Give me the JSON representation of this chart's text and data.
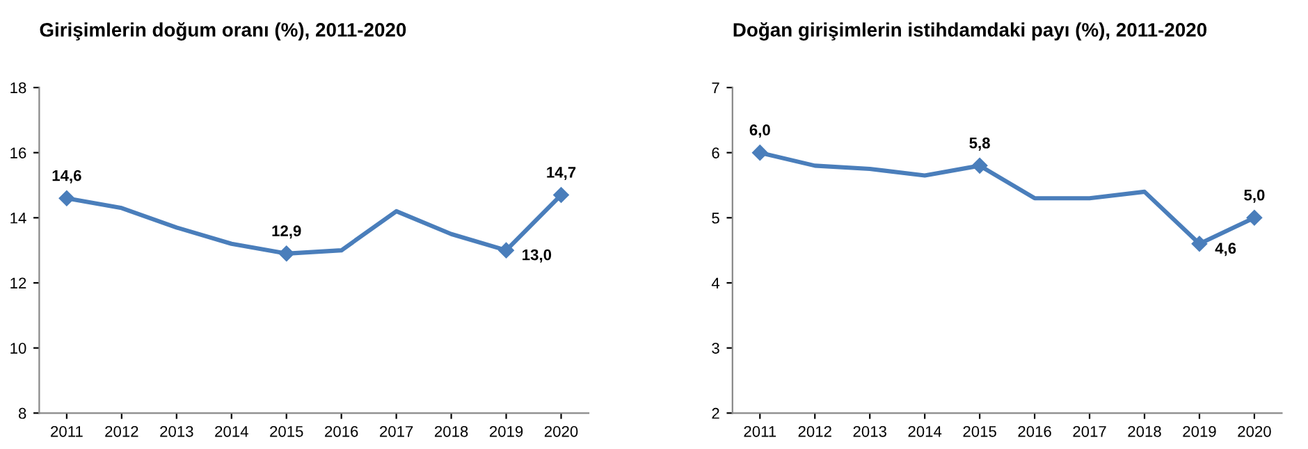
{
  "chart_data": [
    {
      "type": "line",
      "title": "Girişimlerin doğum oranı (%), 2011-2020",
      "categories": [
        "2011",
        "2012",
        "2013",
        "2014",
        "2015",
        "2016",
        "2017",
        "2018",
        "2019",
        "2020"
      ],
      "series": [
        {
          "color": "#4a7ebb",
          "values": [
            14.6,
            14.3,
            13.7,
            13.2,
            12.9,
            13.0,
            14.2,
            13.5,
            13.0,
            14.7
          ],
          "value_labels": [
            "14,6",
            null,
            null,
            null,
            "12,9",
            null,
            null,
            null,
            "13,0",
            "14,7"
          ]
        }
      ],
      "ylim": [
        8,
        18
      ],
      "yticks": [
        8,
        10,
        12,
        14,
        16,
        18
      ],
      "grid": false,
      "legend": false
    },
    {
      "type": "line",
      "title": "Doğan girişimlerin istihdamdaki payı (%), 2011-2020",
      "categories": [
        "2011",
        "2012",
        "2013",
        "2014",
        "2015",
        "2016",
        "2017",
        "2018",
        "2019",
        "2020"
      ],
      "series": [
        {
          "color": "#4a7ebb",
          "values": [
            6.0,
            5.8,
            5.75,
            5.65,
            5.8,
            5.3,
            5.3,
            5.4,
            4.6,
            5.0
          ],
          "value_labels": [
            "6,0",
            null,
            null,
            null,
            "5,8",
            null,
            null,
            null,
            "4,6",
            "5,0"
          ]
        }
      ],
      "ylim": [
        2,
        7
      ],
      "yticks": [
        2,
        3,
        4,
        5,
        6,
        7
      ],
      "grid": false,
      "legend": false
    }
  ]
}
